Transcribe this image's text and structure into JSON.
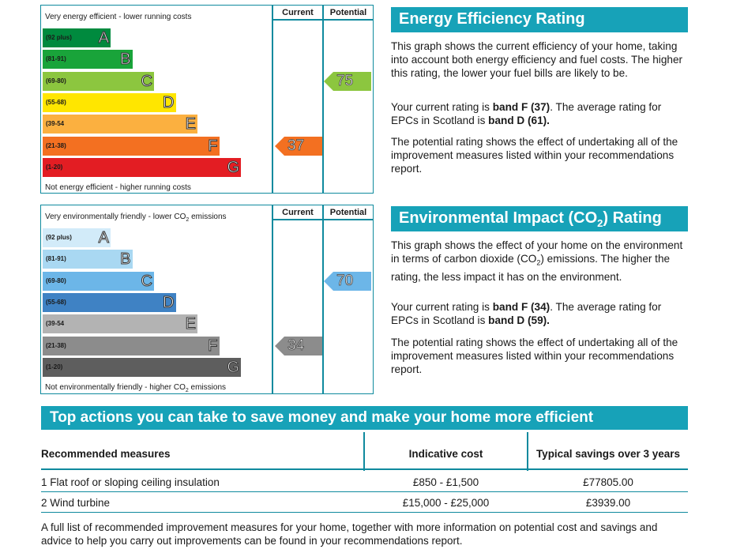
{
  "energy_chart": {
    "top_label": "Very energy efficient - lower running costs",
    "bottom_label": "Not energy efficient - higher running costs",
    "current_header": "Current",
    "potential_header": "Potential",
    "bands": [
      {
        "letter": "A",
        "range": "(92 plus)",
        "color": "#008a3e"
      },
      {
        "letter": "B",
        "range": "(81-91)",
        "color": "#19a43a"
      },
      {
        "letter": "C",
        "range": "(69-80)",
        "color": "#8cc63f"
      },
      {
        "letter": "D",
        "range": "(55-68)",
        "color": "#ffe600"
      },
      {
        "letter": "E",
        "range": "(39-54",
        "color": "#fbb040"
      },
      {
        "letter": "F",
        "range": "(21-38)",
        "color": "#f37021"
      },
      {
        "letter": "G",
        "range": "(1-20)",
        "color": "#e31d23"
      }
    ],
    "current": {
      "value": "37",
      "band_index": 5,
      "color": "#f37021"
    },
    "potential": {
      "value": "75",
      "band_index": 2,
      "color": "#8cc63f"
    }
  },
  "co2_chart": {
    "top_label_pre": "Very environmentally friendly - lower CO",
    "top_label_sub": "2",
    "top_label_post": " emissions",
    "bottom_label_pre": "Not environmentally friendly - higher CO",
    "bottom_label_sub": "2",
    "bottom_label_post": " emissions",
    "current_header": "Current",
    "potential_header": "Potential",
    "bands": [
      {
        "letter": "A",
        "range": "(92 plus)",
        "color": "#d2ebf9"
      },
      {
        "letter": "B",
        "range": "(81-91)",
        "color": "#a9d8f2"
      },
      {
        "letter": "C",
        "range": "(69-80)",
        "color": "#6cb6e8"
      },
      {
        "letter": "D",
        "range": "(55-68)",
        "color": "#3f82c4"
      },
      {
        "letter": "E",
        "range": "(39-54",
        "color": "#b3b3b3"
      },
      {
        "letter": "F",
        "range": "(21-38)",
        "color": "#8c8c8c"
      },
      {
        "letter": "G",
        "range": "(1-20)",
        "color": "#5e5e5e"
      }
    ],
    "current": {
      "value": "34",
      "band_index": 5,
      "color": "#8c8c8c"
    },
    "potential": {
      "value": "70",
      "band_index": 2,
      "color": "#6cb6e8"
    }
  },
  "energy_panel": {
    "title": "Energy Efficiency Rating",
    "p1": "This graph shows the current efficiency of your home, taking into account both energy efficiency and fuel costs. The higher this rating, the lower your fuel bills are likely to be.",
    "p2_pre": "Your current rating is ",
    "p2_band": "band F (37)",
    "p2_mid": ". The average rating for EPCs in Scotland is ",
    "p2_avg": "band D (61).",
    "p3": "The potential rating shows the effect of undertaking all of the improvement measures listed within your recommendations report."
  },
  "env_panel": {
    "title_pre": "Environmental Impact (CO",
    "title_sub": "2",
    "title_post": ") Rating",
    "p1_pre": "This graph shows the effect of your home on the environment in terms of carbon dioxide (CO",
    "p1_sub": "2",
    "p1_post": ") emissions. The higher the rating, the less impact it has on the environment.",
    "p2_pre": "Your current rating is ",
    "p2_band": "band F (34)",
    "p2_mid": ". The average rating for EPCs in Scotland is ",
    "p2_avg": "band D (59).",
    "p3": "The potential rating shows the effect of undertaking all of the improvement measures listed within your recommendations report."
  },
  "actions": {
    "title": "Top actions you can take to save money and make your home more efficient",
    "headers": [
      "Recommended measures",
      "Indicative cost",
      "Typical savings over 3 years"
    ],
    "rows": [
      [
        "1 Flat roof or sloping ceiling insulation",
        "£850 - £1,500",
        "£77805.00"
      ],
      [
        "2 Wind turbine",
        "£15,000 - £25,000",
        "£3939.00"
      ]
    ],
    "footer": "A full list of recommended improvement measures for your home, together with more information on potential cost and savings and advice to help you carry out improvements can be found in your recommendations report."
  }
}
